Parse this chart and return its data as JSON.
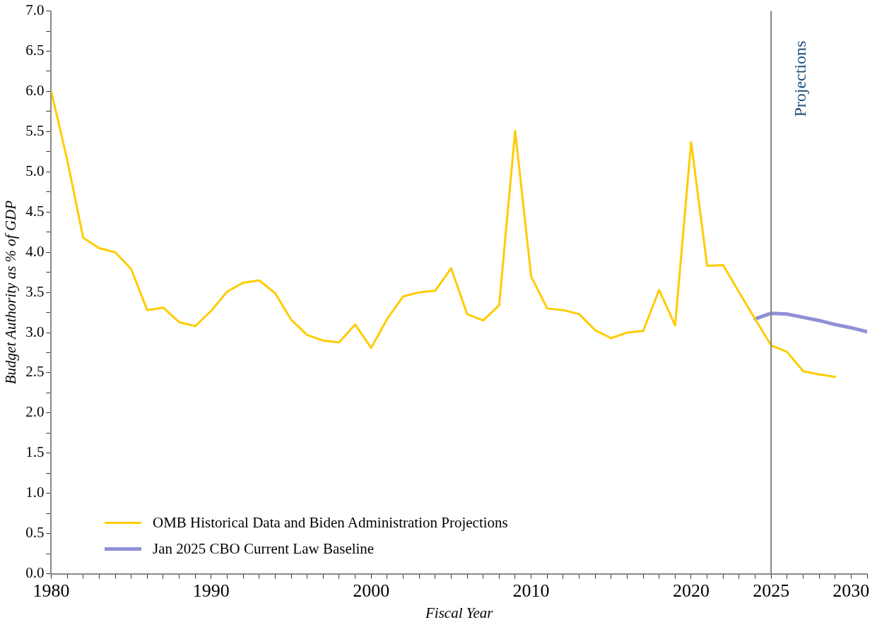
{
  "chart_data": {
    "type": "line",
    "xlabel": "Fiscal Year",
    "ylabel": "Budget Authority as % of GDP",
    "xlim": [
      1980,
      2031
    ],
    "ylim": [
      0,
      7
    ],
    "xticks": [
      1980,
      {
        "value": 1981,
        "label": null
      },
      {
        "value": 1982,
        "label": null
      },
      {
        "value": 1983,
        "label": null
      },
      {
        "value": 1984,
        "label": null
      },
      {
        "value": 1985,
        "label": null
      },
      {
        "value": 1986,
        "label": null
      },
      {
        "value": 1987,
        "label": null
      },
      {
        "value": 1988,
        "label": null
      },
      {
        "value": 1989,
        "label": null
      },
      1990,
      {
        "value": 1991,
        "label": null
      },
      {
        "value": 1992,
        "label": null
      },
      {
        "value": 1993,
        "label": null
      },
      {
        "value": 1994,
        "label": null
      },
      {
        "value": 1995,
        "label": null
      },
      {
        "value": 1996,
        "label": null
      },
      {
        "value": 1997,
        "label": null
      },
      {
        "value": 1998,
        "label": null
      },
      {
        "value": 1999,
        "label": null
      },
      2000,
      {
        "value": 2001,
        "label": null
      },
      {
        "value": 2002,
        "label": null
      },
      {
        "value": 2003,
        "label": null
      },
      {
        "value": 2004,
        "label": null
      },
      {
        "value": 2005,
        "label": null
      },
      {
        "value": 2006,
        "label": null
      },
      {
        "value": 2007,
        "label": null
      },
      {
        "value": 2008,
        "label": null
      },
      {
        "value": 2009,
        "label": null
      },
      2010,
      {
        "value": 2011,
        "label": null
      },
      {
        "value": 2012,
        "label": null
      },
      {
        "value": 2013,
        "label": null
      },
      {
        "value": 2014,
        "label": null
      },
      {
        "value": 2015,
        "label": null
      },
      {
        "value": 2016,
        "label": null
      },
      {
        "value": 2017,
        "label": null
      },
      {
        "value": 2018,
        "label": null
      },
      {
        "value": 2019,
        "label": null
      },
      2020,
      {
        "value": 2021,
        "label": null
      },
      {
        "value": 2022,
        "label": null
      },
      {
        "value": 2023,
        "label": null
      },
      {
        "value": 2024,
        "label": null
      },
      2025,
      {
        "value": 2026,
        "label": null
      },
      {
        "value": 2027,
        "label": null
      },
      {
        "value": 2028,
        "label": null
      },
      {
        "value": 2029,
        "label": null
      },
      2030,
      {
        "value": 2031,
        "label": null
      }
    ],
    "yticks": [
      {
        "value": 0,
        "label": "0.0"
      },
      {
        "value": 0.25,
        "label": null
      },
      0.5,
      {
        "value": 0.75,
        "label": null
      },
      {
        "value": 1,
        "label": "1.0"
      },
      {
        "value": 1.25,
        "label": null
      },
      1.5,
      {
        "value": 1.75,
        "label": null
      },
      {
        "value": 2,
        "label": "2.0"
      },
      {
        "value": 2.25,
        "label": null
      },
      2.5,
      {
        "value": 2.75,
        "label": null
      },
      {
        "value": 3,
        "label": "3.0"
      },
      {
        "value": 3.25,
        "label": null
      },
      3.5,
      {
        "value": 3.75,
        "label": null
      },
      {
        "value": 4,
        "label": "4.0"
      },
      {
        "value": 4.25,
        "label": null
      },
      4.5,
      {
        "value": 4.75,
        "label": null
      },
      {
        "value": 5,
        "label": "5.0"
      },
      {
        "value": 5.25,
        "label": null
      },
      5.5,
      {
        "value": 5.75,
        "label": null
      },
      {
        "value": 6,
        "label": "6.0"
      },
      {
        "value": 6.25,
        "label": null
      },
      6.5,
      {
        "value": 6.75,
        "label": null
      },
      {
        "value": 7,
        "label": "7.0"
      }
    ],
    "grid": false,
    "legend": "bottom left",
    "marker": "none",
    "line_style": "solid",
    "ref_lines": [
      {
        "axis": "x",
        "value": 2025,
        "label": "Projections",
        "color": "#808080"
      }
    ],
    "series": [
      {
        "name": "OMB Historical Data and Biden Administration Projections",
        "color": "#ffcc00",
        "x": [
          1980,
          1981,
          1982,
          1983,
          1984,
          1985,
          1986,
          1987,
          1988,
          1989,
          1990,
          1991,
          1992,
          1993,
          1994,
          1995,
          1996,
          1997,
          1998,
          1999,
          2000,
          2001,
          2002,
          2003,
          2004,
          2005,
          2006,
          2007,
          2008,
          2009,
          2010,
          2011,
          2012,
          2013,
          2014,
          2015,
          2016,
          2017,
          2018,
          2019,
          2020,
          2021,
          2022,
          2023,
          2024,
          2025,
          2026,
          2027,
          2028,
          2029
        ],
        "values": [
          6.0,
          5.15,
          4.18,
          4.05,
          4.0,
          3.79,
          3.28,
          3.31,
          3.13,
          3.08,
          3.27,
          3.51,
          3.62,
          3.65,
          3.49,
          3.16,
          2.97,
          2.9,
          2.88,
          3.1,
          2.81,
          3.17,
          3.45,
          3.5,
          3.52,
          3.8,
          3.23,
          3.15,
          3.34,
          5.51,
          3.7,
          3.3,
          3.28,
          3.23,
          3.03,
          2.93,
          3.0,
          3.02,
          3.53,
          3.09,
          5.37,
          3.83,
          3.84,
          3.5,
          3.17,
          2.84,
          2.76,
          2.52,
          2.48,
          2.45
        ]
      },
      {
        "name": "Jan 2025 CBO Current Law Baseline",
        "color": "#8f8fd8",
        "x": [
          2024,
          2025,
          2026,
          2027,
          2028,
          2029,
          2030,
          2031
        ],
        "values": [
          3.17,
          3.24,
          3.23,
          3.19,
          3.15,
          3.1,
          3.06,
          3.01
        ]
      }
    ]
  }
}
